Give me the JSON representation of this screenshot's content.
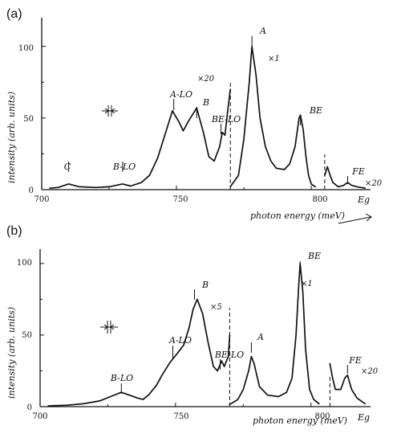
{
  "chart_data": [
    {
      "type": "line",
      "panel_label": "(a)",
      "xlabel": "photon energy (meV)",
      "ylabel": "intensity (arb. units)",
      "xlim": [
        700,
        822
      ],
      "ylim": [
        0,
        120
      ],
      "x_ticks": [
        "700",
        "750",
        "800"
      ],
      "y_ticks": [
        "0",
        "50",
        "100"
      ],
      "grid": false,
      "segments": [
        {
          "range": [
            703,
            770
          ],
          "points": [
            [
              703,
              1
            ],
            [
              706,
              1.5
            ],
            [
              710,
              4
            ],
            [
              714,
              2
            ],
            [
              720,
              1.5
            ],
            [
              725,
              2
            ],
            [
              730,
              4
            ],
            [
              733,
              2.5
            ],
            [
              737,
              5
            ],
            [
              740,
              10
            ],
            [
              743,
              22
            ],
            [
              746,
              40
            ],
            [
              748.5,
              55
            ],
            [
              751,
              47
            ],
            [
              752.5,
              41
            ],
            [
              754.5,
              48
            ],
            [
              757.5,
              57
            ],
            [
              760,
              40
            ],
            [
              762,
              23
            ],
            [
              764,
              20
            ],
            [
              766,
              30
            ],
            [
              767,
              40
            ],
            [
              768,
              38
            ],
            [
              769,
              55
            ],
            [
              770,
              70
            ]
          ]
        },
        {
          "range": [
            770,
            802
          ],
          "points": [
            [
              770,
              2
            ],
            [
              773,
              10
            ],
            [
              775,
              35
            ],
            [
              777,
              75
            ],
            [
              778,
              100
            ],
            [
              779.5,
              80
            ],
            [
              781,
              50
            ],
            [
              783,
              30
            ],
            [
              785,
              20
            ],
            [
              787,
              15
            ],
            [
              790,
              14
            ],
            [
              792,
              18
            ],
            [
              794,
              30
            ],
            [
              795.5,
              50
            ],
            [
              796,
              52
            ],
            [
              797,
              42
            ],
            [
              798,
              24
            ],
            [
              799,
              10
            ],
            [
              800,
              4
            ],
            [
              801.5,
              2
            ]
          ]
        },
        {
          "range": [
            805,
            820
          ],
          "points": [
            [
              805,
              10
            ],
            [
              806,
              16
            ],
            [
              807,
              10
            ],
            [
              808,
              5
            ],
            [
              810,
              2
            ],
            [
              812,
              3
            ],
            [
              813.5,
              5
            ],
            [
              815,
              3
            ],
            [
              817,
              2
            ],
            [
              820,
              1
            ]
          ]
        }
      ],
      "dashed_markers_x": [
        770,
        805
      ],
      "peak_labels": [
        "C",
        "B-LO",
        "A-LO",
        "B",
        "BE-LO",
        "A",
        "BE",
        "FE"
      ],
      "peak_label_x": [
        710,
        730,
        749,
        757.5,
        766.5,
        778,
        796,
        813.5
      ],
      "multipliers": [
        "×20",
        "×1",
        "×20"
      ],
      "energy_gap_label": "Eg"
    },
    {
      "type": "line",
      "panel_label": "(b)",
      "xlabel": "photon energy (meV)",
      "ylabel": "intensity (arb. units)",
      "xlim": [
        700,
        822
      ],
      "ylim": [
        0,
        110
      ],
      "x_ticks": [
        "700",
        "750",
        "800"
      ],
      "y_ticks": [
        "0",
        "50",
        "100"
      ],
      "grid": false,
      "segments": [
        {
          "range": [
            703,
            770
          ],
          "points": [
            [
              703,
              0.5
            ],
            [
              710,
              1
            ],
            [
              716,
              2
            ],
            [
              722,
              4
            ],
            [
              726,
              7
            ],
            [
              730,
              10
            ],
            [
              733,
              8
            ],
            [
              736,
              6
            ],
            [
              738,
              5
            ],
            [
              740,
              8
            ],
            [
              743,
              15
            ],
            [
              745,
              22
            ],
            [
              748,
              31
            ],
            [
              751,
              38
            ],
            [
              753,
              43
            ],
            [
              755,
              55
            ],
            [
              756.5,
              68
            ],
            [
              758,
              75
            ],
            [
              760,
              65
            ],
            [
              762,
              45
            ],
            [
              764,
              28
            ],
            [
              765.5,
              25
            ],
            [
              767,
              32
            ],
            [
              768,
              28
            ],
            [
              769.5,
              35
            ],
            [
              770,
              50
            ]
          ]
        },
        {
          "range": [
            770,
            804
          ],
          "points": [
            [
              770,
              1.5
            ],
            [
              773,
              5
            ],
            [
              775,
              12
            ],
            [
              777,
              25
            ],
            [
              778,
              35
            ],
            [
              779,
              30
            ],
            [
              781,
              14
            ],
            [
              784,
              8
            ],
            [
              788,
              7
            ],
            [
              791,
              10
            ],
            [
              793,
              20
            ],
            [
              794.5,
              50
            ],
            [
              795.5,
              85
            ],
            [
              796,
              100
            ],
            [
              797,
              80
            ],
            [
              798,
              40
            ],
            [
              799.5,
              12
            ],
            [
              801,
              5
            ],
            [
              803,
              2
            ]
          ]
        },
        {
          "range": [
            807,
            820
          ],
          "points": [
            [
              807,
              30
            ],
            [
              808,
              20
            ],
            [
              809,
              12
            ],
            [
              811,
              12
            ],
            [
              812.5,
              20
            ],
            [
              813.5,
              22
            ],
            [
              815,
              12
            ],
            [
              817,
              6
            ],
            [
              820,
              2
            ]
          ]
        }
      ],
      "dashed_markers_x": [
        770,
        807
      ],
      "peak_labels": [
        "B-LO",
        "A-LO",
        "B",
        "BE-LO",
        "A",
        "BE",
        "FE"
      ],
      "peak_label_x": [
        730,
        749,
        757,
        766.5,
        778,
        796,
        813.5
      ],
      "multipliers": [
        "×5",
        "×1",
        "×20"
      ],
      "energy_gap_label": "Eg"
    }
  ]
}
